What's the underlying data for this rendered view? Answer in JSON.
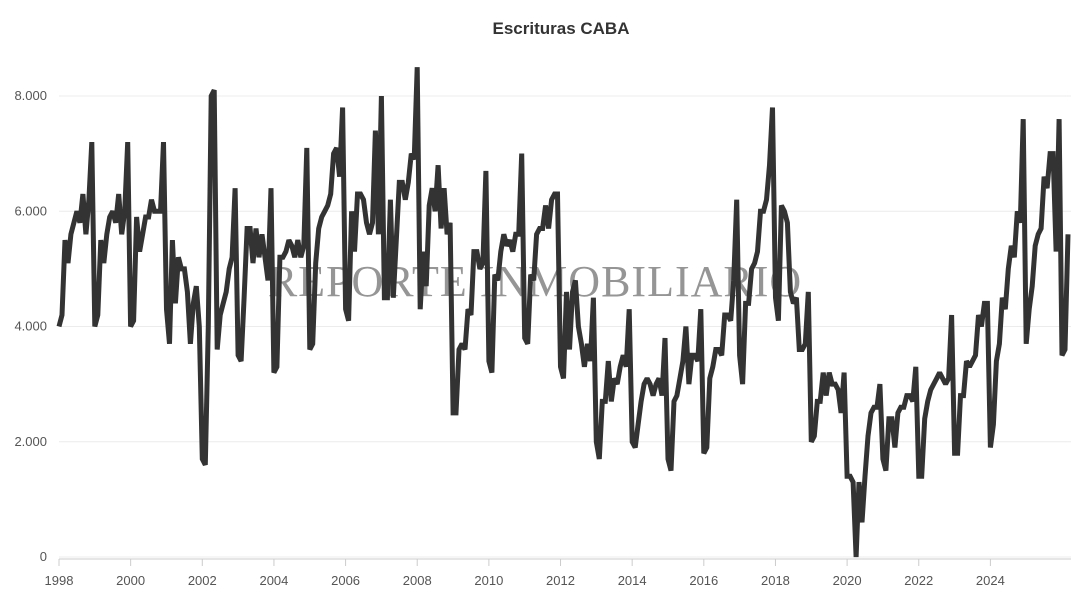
{
  "chart_data": {
    "type": "line",
    "title": "Escrituras CABA",
    "xlabel": "",
    "ylabel": "",
    "watermark": "REPORTE INMOBILIARIO",
    "start": "1998-01",
    "frequency": "monthly",
    "xlim": [
      1998,
      2026.25
    ],
    "ylim": [
      0,
      8700
    ],
    "x_ticks": [
      "1998",
      "2000",
      "2002",
      "2004",
      "2006",
      "2008",
      "2010",
      "2012",
      "2014",
      "2016",
      "2018",
      "2020",
      "2022",
      "2024"
    ],
    "y_ticks": [
      {
        "value": 0,
        "label": "0"
      },
      {
        "value": 2000,
        "label": "2.000"
      },
      {
        "value": 4000,
        "label": "4.000"
      },
      {
        "value": 6000,
        "label": "6.000"
      },
      {
        "value": 8000,
        "label": "8.000"
      }
    ],
    "grid": "horizontal",
    "line_color": "#333333",
    "values": [
      4000,
      4200,
      5500,
      5100,
      5600,
      5800,
      6000,
      5800,
      6300,
      5600,
      6200,
      7200,
      4000,
      4200,
      5500,
      5100,
      5600,
      5900,
      6000,
      5800,
      6300,
      5600,
      6000,
      7200,
      4000,
      4100,
      5900,
      5300,
      5600,
      5900,
      5900,
      6200,
      6000,
      6000,
      6000,
      7200,
      4300,
      3700,
      5500,
      4400,
      5200,
      5000,
      5000,
      4600,
      3700,
      4400,
      4700,
      4000,
      1700,
      1600,
      4000,
      8000,
      8100,
      3600,
      4200,
      4400,
      4600,
      5000,
      5200,
      6400,
      3500,
      3400,
      4500,
      5700,
      5700,
      5100,
      5700,
      5200,
      5600,
      5200,
      4800,
      6400,
      3200,
      3300,
      5200,
      5200,
      5300,
      5500,
      5400,
      5200,
      5500,
      5200,
      5400,
      7100,
      3600,
      3700,
      5100,
      5700,
      5900,
      6000,
      6100,
      6300,
      7000,
      7100,
      6600,
      7800,
      4300,
      4100,
      6000,
      5300,
      6300,
      6300,
      6200,
      5800,
      5600,
      5800,
      7400,
      5600,
      8000,
      4500,
      4500,
      6200,
      4500,
      5500,
      6500,
      6500,
      6200,
      6500,
      7000,
      6900,
      8500,
      4300,
      5300,
      4700,
      6100,
      6400,
      6000,
      6800,
      5700,
      6400,
      5600,
      5800,
      2500,
      2500,
      3600,
      3700,
      3600,
      4300,
      4200,
      5300,
      5300,
      5000,
      5100,
      6700,
      3400,
      3200,
      4900,
      4800,
      5300,
      5600,
      5400,
      5500,
      5300,
      5600,
      5600,
      7000,
      3800,
      3700,
      4900,
      4800,
      5600,
      5700,
      5700,
      6100,
      5700,
      6200,
      6300,
      6300,
      3300,
      3100,
      4600,
      3600,
      4600,
      4800,
      4000,
      3700,
      3300,
      3700,
      3400,
      4500,
      2000,
      1700,
      2700,
      2700,
      3400,
      2700,
      3100,
      3000,
      3300,
      3500,
      3300,
      4300,
      2000,
      1900,
      2300,
      2700,
      3000,
      3100,
      3000,
      2800,
      3000,
      3100,
      2800,
      3800,
      1700,
      1500,
      2700,
      2800,
      3100,
      3400,
      4000,
      3000,
      3500,
      3500,
      3400,
      4300,
      1800,
      1900,
      3100,
      3300,
      3600,
      3600,
      3500,
      4200,
      4200,
      4100,
      4800,
      6200,
      3500,
      3000,
      4400,
      4400,
      5000,
      5100,
      5300,
      6000,
      6000,
      6200,
      6800,
      7800,
      4500,
      4100,
      6100,
      6000,
      5800,
      4600,
      4400,
      4500,
      3600,
      3600,
      3700,
      4600,
      2000,
      2100,
      2700,
      2700,
      3200,
      2800,
      3200,
      3000,
      3000,
      2900,
      2500,
      3200,
      1400,
      1400,
      1300,
      0,
      1300,
      600,
      1400,
      2100,
      2500,
      2600,
      2600,
      3000,
      1700,
      1500,
      2400,
      2400,
      1900,
      2500,
      2600,
      2600,
      2800,
      2800,
      2700,
      3300,
      1400,
      1400,
      2400,
      2700,
      2900,
      3000,
      3100,
      3200,
      3100,
      3000,
      3100,
      4200,
      1800,
      1800,
      2800,
      2800,
      3400,
      3300,
      3400,
      3500,
      4200,
      4000,
      4400,
      4400,
      1900,
      2300,
      3400,
      3700,
      4500,
      4300,
      5000,
      5400,
      5200,
      6000,
      5800,
      7600,
      3700,
      4300,
      4700,
      5400,
      5600,
      5700,
      6600,
      6400,
      7000,
      7000,
      5300,
      7600,
      3500,
      3600,
      5600
    ]
  }
}
